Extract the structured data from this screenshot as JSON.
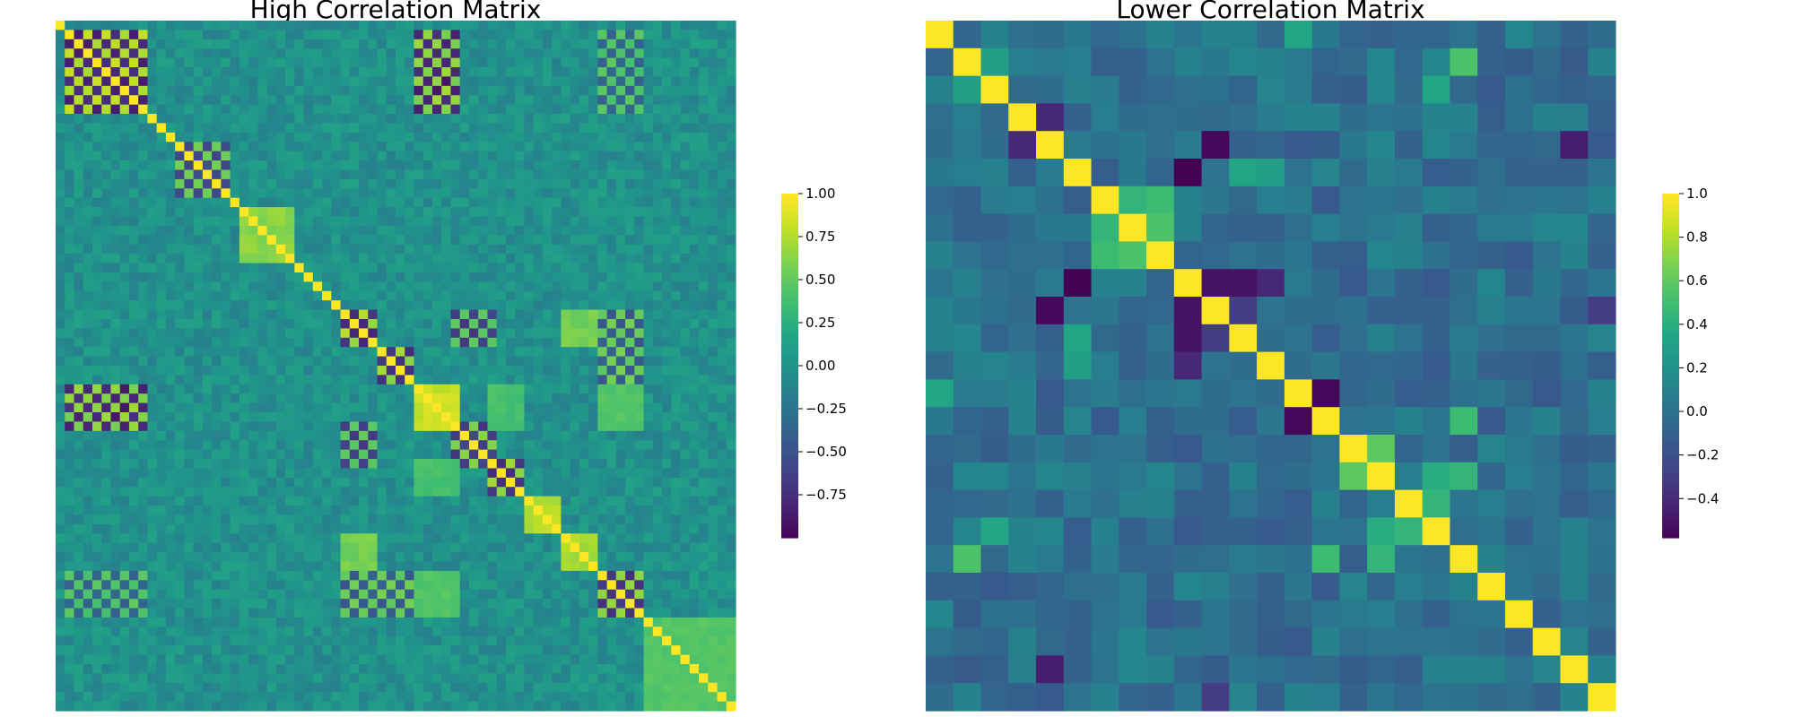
{
  "chart_data": [
    {
      "type": "heatmap",
      "title": "High Correlation Matrix",
      "n": 74,
      "colormap": "viridis",
      "vmin": -1.0,
      "vmax": 1.0,
      "colorbar_ticks": [
        {
          "value": 1.0,
          "label": "1.00"
        },
        {
          "value": 0.75,
          "label": "0.75"
        },
        {
          "value": 0.5,
          "label": "0.50"
        },
        {
          "value": 0.25,
          "label": "0.25"
        },
        {
          "value": 0.0,
          "label": "0.00"
        },
        {
          "value": -0.25,
          "label": "−0.25"
        },
        {
          "value": -0.5,
          "label": "−0.50"
        },
        {
          "value": -0.75,
          "label": "−0.75"
        }
      ],
      "diagonal": 1.0,
      "blocks": [
        {
          "range": [
            1,
            10
          ],
          "within": 0.85,
          "checker": true
        },
        {
          "range": [
            13,
            19
          ],
          "within": 0.6,
          "checker": true
        },
        {
          "range": [
            20,
            26
          ],
          "within": 0.7
        },
        {
          "range": [
            31,
            35
          ],
          "within": 0.8,
          "checker": true
        },
        {
          "range": [
            35,
            39
          ],
          "within": 0.75,
          "checker": true
        },
        {
          "range": [
            39,
            44
          ],
          "within": 0.9
        },
        {
          "range": [
            43,
            48
          ],
          "within": 0.7,
          "checker": true
        },
        {
          "range": [
            47,
            51
          ],
          "within": 0.75,
          "checker": true
        },
        {
          "range": [
            51,
            55
          ],
          "within": 0.85
        },
        {
          "range": [
            55,
            59
          ],
          "within": 0.8
        },
        {
          "range": [
            59,
            64
          ],
          "within": 0.75,
          "checker": true
        },
        {
          "range": [
            64,
            74
          ],
          "within": 0.5
        }
      ],
      "cross_blocks": [
        {
          "rows": [
            39,
            44
          ],
          "cols": [
            1,
            10
          ],
          "value": -0.9,
          "checker": true
        },
        {
          "rows": [
            31,
            35
          ],
          "cols": [
            43,
            48
          ],
          "value": -0.7,
          "checker": true
        },
        {
          "rows": [
            31,
            35
          ],
          "cols": [
            55,
            59
          ],
          "value": 0.65
        },
        {
          "rows": [
            59,
            64
          ],
          "cols": [
            31,
            39
          ],
          "value": 0.6,
          "checker": true
        },
        {
          "rows": [
            59,
            64
          ],
          "cols": [
            1,
            10
          ],
          "value": 0.5,
          "checker": true
        },
        {
          "rows": [
            39,
            44
          ],
          "cols": [
            47,
            51
          ],
          "value": 0.45
        },
        {
          "rows": [
            39,
            44
          ],
          "cols": [
            59,
            64
          ],
          "value": 0.5
        }
      ]
    },
    {
      "type": "heatmap",
      "title": "Lower Correlation Matrix",
      "n": 25,
      "colormap": "viridis",
      "vmin": -0.58,
      "vmax": 1.0,
      "colorbar_ticks": [
        {
          "value": 1.0,
          "label": "1.0"
        },
        {
          "value": 0.8,
          "label": "0.8"
        },
        {
          "value": 0.6,
          "label": "0.6"
        },
        {
          "value": 0.4,
          "label": "0.4"
        },
        {
          "value": 0.2,
          "label": "0.2"
        },
        {
          "value": 0.0,
          "label": "0.0"
        },
        {
          "value": -0.2,
          "label": "−0.2"
        },
        {
          "value": -0.4,
          "label": "−0.4"
        }
      ],
      "diagonal": 1.0,
      "pairs": [
        [
          5,
          9,
          -0.58
        ],
        [
          6,
          7,
          0.45
        ],
        [
          6,
          8,
          0.5
        ],
        [
          7,
          8,
          0.55
        ],
        [
          9,
          10,
          -0.5
        ],
        [
          9,
          11,
          -0.5
        ],
        [
          9,
          12,
          -0.4
        ],
        [
          10,
          11,
          -0.3
        ],
        [
          13,
          14,
          -0.55
        ],
        [
          15,
          16,
          0.6
        ],
        [
          16,
          18,
          0.4
        ],
        [
          17,
          18,
          0.45
        ],
        [
          1,
          19,
          0.55
        ],
        [
          14,
          19,
          0.5
        ],
        [
          0,
          13,
          0.35
        ],
        [
          5,
          11,
          0.35
        ],
        [
          5,
          12,
          0.3
        ],
        [
          3,
          4,
          -0.4
        ],
        [
          1,
          2,
          0.3
        ],
        [
          4,
          23,
          -0.45
        ],
        [
          10,
          24,
          -0.3
        ],
        [
          4,
          10,
          -0.55
        ],
        [
          16,
          19,
          0.45
        ],
        [
          2,
          18,
          0.35
        ]
      ]
    }
  ]
}
